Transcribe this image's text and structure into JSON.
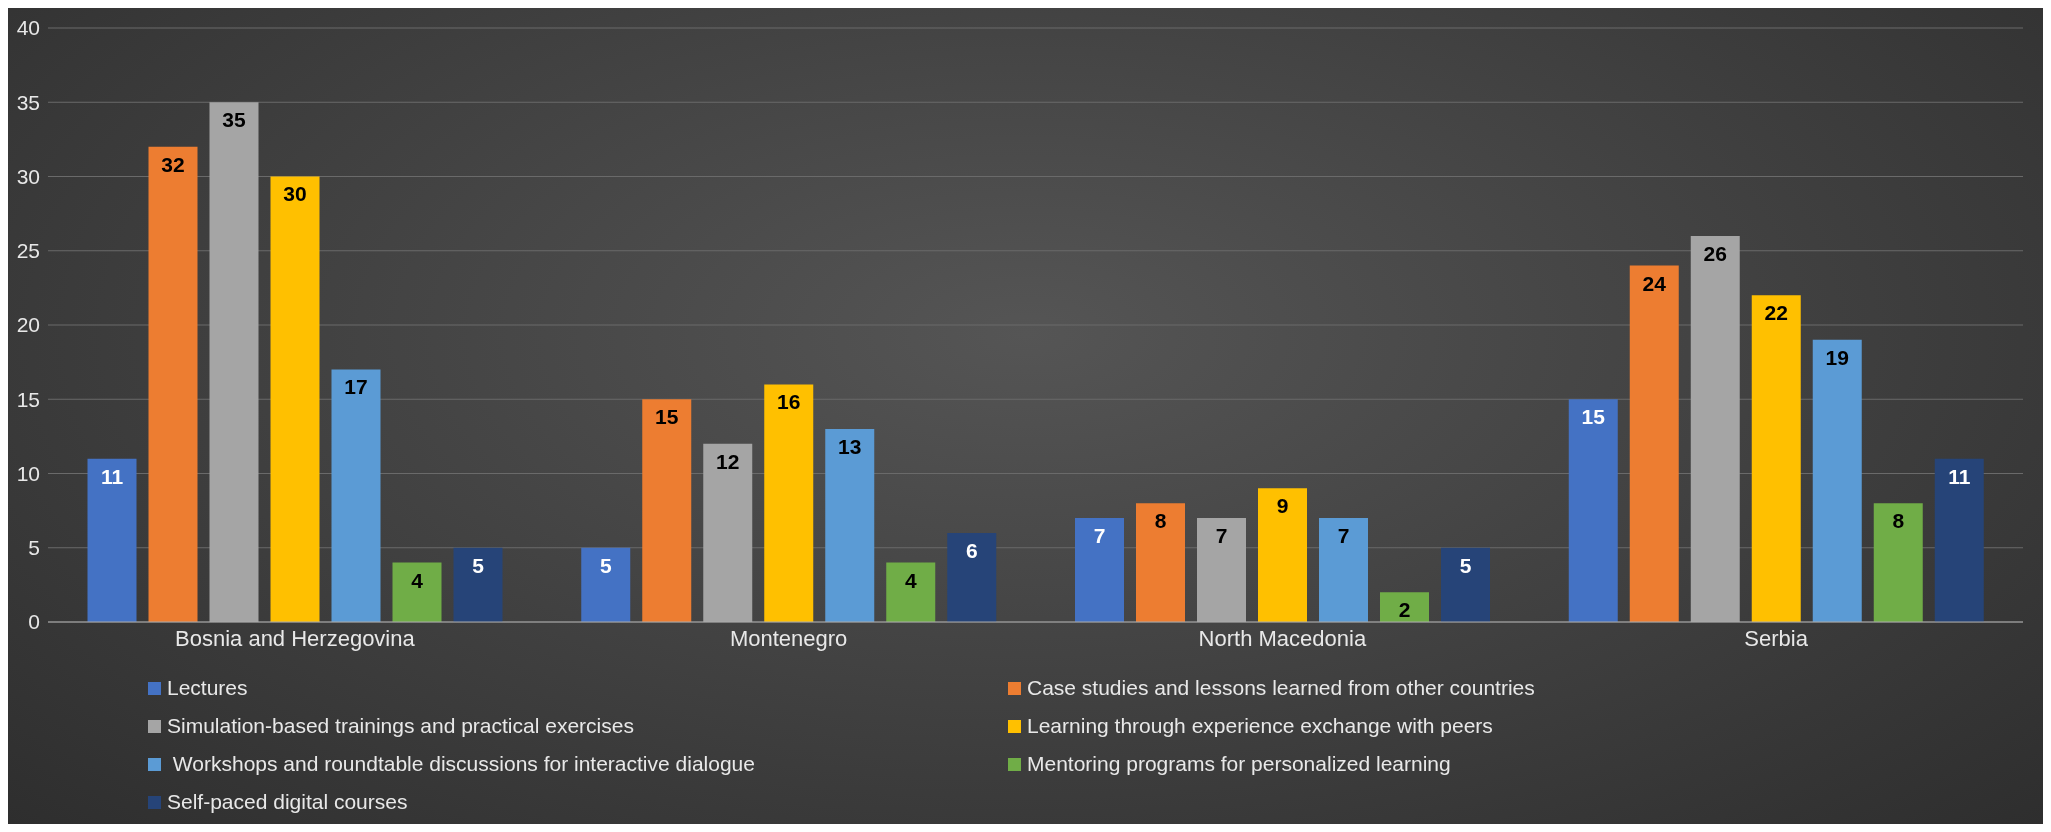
{
  "chart_data": {
    "type": "bar",
    "categories": [
      "Bosnia and Herzegovina",
      "Montenegro",
      "North Macedonia",
      "Serbia"
    ],
    "series": [
      {
        "name": "Lectures",
        "color": "#4472c4",
        "values": [
          11,
          5,
          7,
          15
        ]
      },
      {
        "name": "Case studies and lessons learned from other countries",
        "color": "#ed7d31",
        "values": [
          32,
          15,
          8,
          24
        ]
      },
      {
        "name": "Simulation-based trainings and practical exercises",
        "color": "#a5a5a5",
        "values": [
          35,
          12,
          7,
          26
        ]
      },
      {
        "name": "Learning through experience exchange with peers",
        "color": "#ffc000",
        "values": [
          30,
          16,
          9,
          22
        ]
      },
      {
        "name": " Workshops and roundtable discussions for interactive dialogue",
        "color": "#5b9bd5",
        "values": [
          17,
          13,
          7,
          19
        ]
      },
      {
        "name": "Mentoring programs for personalized learning",
        "color": "#70ad47",
        "values": [
          4,
          4,
          2,
          8
        ]
      },
      {
        "name": "Self-paced digital courses",
        "color": "#264478",
        "values": [
          5,
          6,
          5,
          11
        ]
      }
    ],
    "ylim": [
      0,
      40
    ],
    "yticks": [
      0,
      5,
      10,
      15,
      20,
      25,
      30,
      35,
      40
    ],
    "grid": "y",
    "legend": "bottom",
    "data_labels": true
  }
}
